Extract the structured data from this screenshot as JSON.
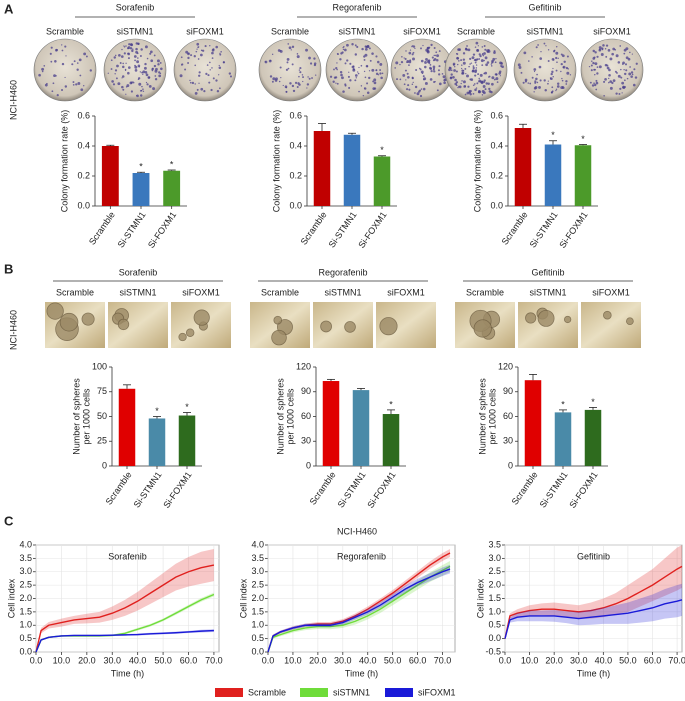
{
  "panel_labels": [
    "A",
    "B",
    "C"
  ],
  "cell_line": "NCI-H460",
  "plate_labels": [
    "Scramble",
    "siSTMN1",
    "siFOXM1"
  ],
  "chart_data": [
    {
      "type": "bar",
      "title": "Sorafenib",
      "ylabel": [
        "Colony formation rate (%)"
      ],
      "categories": [
        "Scramble",
        "Si-STMN1",
        "Si-FOXM1"
      ],
      "values": [
        0.4,
        0.22,
        0.235
      ],
      "errors": [
        0.005,
        0.005,
        0.005
      ],
      "colors": [
        "#c00000",
        "#3a78bd",
        "#4c9a2a"
      ],
      "ylim": [
        0,
        0.6
      ],
      "yticks": [
        {
          "value": 0,
          "label": "0.0"
        },
        0.2,
        0.4,
        0.6
      ],
      "annotations": [
        {
          "index": 1,
          "text": "*"
        },
        {
          "index": 2,
          "text": "*"
        }
      ]
    },
    {
      "type": "bar",
      "title": "Regorafenib",
      "ylabel": [
        "Colony formation rate (%)"
      ],
      "categories": [
        "Scramble",
        "Si-STMN1",
        "Si-FOXM1"
      ],
      "values": [
        0.5,
        0.475,
        0.33
      ],
      "errors": [
        0.05,
        0.01,
        0.005
      ],
      "colors": [
        "#c00000",
        "#3a78bd",
        "#4c9a2a"
      ],
      "ylim": [
        0,
        0.6
      ],
      "yticks": [
        {
          "value": 0,
          "label": "0.0"
        },
        0.2,
        0.4,
        0.6
      ],
      "annotations": [
        {
          "index": 2,
          "text": "*"
        }
      ]
    },
    {
      "type": "bar",
      "title": "Gefitinib",
      "ylabel": [
        "Colony formation rate (%)"
      ],
      "categories": [
        "Scramble",
        "Si-STMN1",
        "Si-FOXM1"
      ],
      "values": [
        0.52,
        0.41,
        0.405
      ],
      "errors": [
        0.025,
        0.025,
        0.005
      ],
      "colors": [
        "#c00000",
        "#3a78bd",
        "#4c9a2a"
      ],
      "ylim": [
        0,
        0.6
      ],
      "yticks": [
        {
          "value": 0,
          "label": "0.0"
        },
        0.2,
        0.4,
        0.6
      ],
      "annotations": [
        {
          "index": 1,
          "text": "*"
        },
        {
          "index": 2,
          "text": "*"
        }
      ]
    },
    {
      "type": "bar",
      "title": "Sorafenib",
      "ylabel": [
        "Number of spheres",
        "per 1000 cells"
      ],
      "categories": [
        "Scramble",
        "Si-STMN1",
        "Si-FOXM1"
      ],
      "values": [
        78,
        48,
        51
      ],
      "errors": [
        4,
        2,
        3
      ],
      "colors": [
        "#e00000",
        "#4a8aa8",
        "#2e6b1e"
      ],
      "ylim": [
        0,
        100
      ],
      "yticks": [
        0,
        25,
        50,
        75,
        100
      ],
      "annotations": [
        {
          "index": 1,
          "text": "*"
        },
        {
          "index": 2,
          "text": "*"
        }
      ]
    },
    {
      "type": "bar",
      "title": "Regorafenib",
      "ylabel": [
        "Number of spheres",
        "per 1000 cells"
      ],
      "categories": [
        "Scramble",
        "Si-STMN1",
        "Si-FOXM1"
      ],
      "values": [
        103,
        92,
        63
      ],
      "errors": [
        2,
        2,
        5
      ],
      "colors": [
        "#e00000",
        "#4a8aa8",
        "#2e6b1e"
      ],
      "ylim": [
        0,
        120
      ],
      "yticks": [
        0,
        30,
        60,
        90,
        120
      ],
      "annotations": [
        {
          "index": 2,
          "text": "*"
        }
      ]
    },
    {
      "type": "bar",
      "title": "Gefitinib",
      "ylabel": [
        "Number of spheres",
        "per 1000 cells"
      ],
      "categories": [
        "Scramble",
        "Si-STMN1",
        "Si-FOXM1"
      ],
      "values": [
        104,
        65,
        68
      ],
      "errors": [
        7,
        3,
        3
      ],
      "colors": [
        "#e00000",
        "#4a8aa8",
        "#2e6b1e"
      ],
      "ylim": [
        0,
        120
      ],
      "yticks": [
        0,
        30,
        60,
        90,
        120
      ],
      "annotations": [
        {
          "index": 1,
          "text": "*"
        },
        {
          "index": 2,
          "text": "*"
        }
      ]
    },
    {
      "type": "line",
      "title": "Sorafenib",
      "xlabel": "Time (h)",
      "ylabel": "Cell index",
      "x": [
        0,
        2,
        5,
        10,
        15,
        20,
        25,
        30,
        35,
        40,
        45,
        50,
        55,
        60,
        65,
        70
      ],
      "series": [
        {
          "name": "Scramble",
          "color": "#e0201e",
          "values": [
            0,
            0.8,
            1.0,
            1.1,
            1.2,
            1.25,
            1.3,
            1.45,
            1.65,
            1.9,
            2.2,
            2.5,
            2.8,
            3.0,
            3.15,
            3.25
          ],
          "errors": [
            0,
            0.1,
            0.12,
            0.15,
            0.15,
            0.18,
            0.2,
            0.25,
            0.3,
            0.35,
            0.4,
            0.45,
            0.5,
            0.55,
            0.6,
            0.6
          ]
        },
        {
          "name": "siSTMN1",
          "color": "#6fdc3a",
          "values": [
            0,
            0.45,
            0.55,
            0.6,
            0.6,
            0.6,
            0.6,
            0.62,
            0.7,
            0.85,
            1.0,
            1.2,
            1.45,
            1.7,
            1.95,
            2.15
          ],
          "errors": [
            0,
            0.03,
            0.03,
            0.03,
            0.03,
            0.03,
            0.03,
            0.04,
            0.04,
            0.05,
            0.05,
            0.05,
            0.06,
            0.06,
            0.07,
            0.07
          ]
        },
        {
          "name": "siFOXM1",
          "color": "#1a1ad8",
          "values": [
            0,
            0.45,
            0.55,
            0.6,
            0.62,
            0.62,
            0.62,
            0.63,
            0.64,
            0.65,
            0.68,
            0.7,
            0.72,
            0.75,
            0.78,
            0.8
          ],
          "errors": [
            0,
            0.03,
            0.03,
            0.03,
            0.03,
            0.03,
            0.03,
            0.03,
            0.03,
            0.04,
            0.04,
            0.04,
            0.04,
            0.04,
            0.05,
            0.05
          ]
        }
      ],
      "xlim": [
        0,
        72
      ],
      "ylim": [
        0,
        4.0
      ],
      "xticks": [
        {
          "value": 0,
          "label": "0.0"
        },
        {
          "value": 10,
          "label": "10.0"
        },
        {
          "value": 20,
          "label": "20.0"
        },
        {
          "value": 30,
          "label": "30.0"
        },
        {
          "value": 40,
          "label": "40.0"
        },
        {
          "value": 50,
          "label": "50.0"
        },
        {
          "value": 60,
          "label": "60.0"
        },
        {
          "value": 70,
          "label": "70.0"
        }
      ],
      "yticks": [
        {
          "value": 0,
          "label": "0.0"
        },
        0.5,
        {
          "value": 1,
          "label": "1.0"
        },
        1.5,
        {
          "value": 2,
          "label": "2.0"
        },
        2.5,
        {
          "value": 3,
          "label": "3.0"
        },
        3.5,
        {
          "value": 4,
          "label": "4.0"
        }
      ]
    },
    {
      "type": "line",
      "title": "Regorafenib",
      "xlabel": "Time (h)",
      "ylabel": "Cell index",
      "x": [
        0,
        2,
        5,
        10,
        15,
        20,
        25,
        30,
        35,
        40,
        45,
        50,
        55,
        60,
        65,
        70,
        73
      ],
      "series": [
        {
          "name": "Scramble",
          "color": "#e0201e",
          "values": [
            0,
            0.6,
            0.75,
            0.9,
            1.0,
            1.05,
            1.05,
            1.15,
            1.35,
            1.6,
            1.9,
            2.2,
            2.55,
            2.9,
            3.25,
            3.55,
            3.7
          ],
          "errors": [
            0,
            0.05,
            0.05,
            0.06,
            0.06,
            0.07,
            0.07,
            0.08,
            0.09,
            0.1,
            0.1,
            0.12,
            0.12,
            0.13,
            0.14,
            0.15,
            0.15
          ]
        },
        {
          "name": "siSTMN1",
          "color": "#6fdc3a",
          "values": [
            0,
            0.55,
            0.65,
            0.8,
            0.9,
            0.95,
            0.95,
            1.0,
            1.15,
            1.35,
            1.6,
            1.9,
            2.2,
            2.5,
            2.8,
            3.05,
            3.2
          ],
          "errors": [
            0,
            0.05,
            0.06,
            0.07,
            0.08,
            0.09,
            0.1,
            0.1,
            0.12,
            0.13,
            0.14,
            0.15,
            0.16,
            0.17,
            0.18,
            0.2,
            0.2
          ]
        },
        {
          "name": "siFOXM1",
          "color": "#1a1ad8",
          "values": [
            0,
            0.6,
            0.75,
            0.9,
            1.0,
            1.0,
            1.0,
            1.1,
            1.3,
            1.5,
            1.75,
            2.05,
            2.35,
            2.6,
            2.8,
            3.0,
            3.1
          ],
          "errors": [
            0,
            0.05,
            0.05,
            0.06,
            0.06,
            0.07,
            0.07,
            0.08,
            0.09,
            0.1,
            0.11,
            0.12,
            0.13,
            0.14,
            0.15,
            0.16,
            0.16
          ]
        }
      ],
      "xlim": [
        0,
        75
      ],
      "ylim": [
        0,
        4.0
      ],
      "xticks": [
        {
          "value": 0,
          "label": "0.0"
        },
        {
          "value": 10,
          "label": "10.0"
        },
        {
          "value": 20,
          "label": "20.0"
        },
        {
          "value": 30,
          "label": "30.0"
        },
        {
          "value": 40,
          "label": "40.0"
        },
        {
          "value": 50,
          "label": "50.0"
        },
        {
          "value": 60,
          "label": "60.0"
        },
        {
          "value": 70,
          "label": "70.0"
        }
      ],
      "yticks": [
        {
          "value": 0,
          "label": "0.0"
        },
        0.5,
        {
          "value": 1,
          "label": "1.0"
        },
        1.5,
        {
          "value": 2,
          "label": "2.0"
        },
        2.5,
        {
          "value": 3,
          "label": "3.0"
        },
        3.5,
        {
          "value": 4,
          "label": "4.0"
        }
      ]
    },
    {
      "type": "line",
      "title": "Gefitinib",
      "xlabel": "Time (h)",
      "ylabel": "Cell index",
      "x": [
        0,
        2,
        5,
        10,
        15,
        20,
        25,
        30,
        35,
        40,
        45,
        50,
        55,
        60,
        65,
        70,
        72
      ],
      "series": [
        {
          "name": "Scramble",
          "color": "#e0201e",
          "values": [
            0,
            0.85,
            0.95,
            1.05,
            1.1,
            1.1,
            1.05,
            1.0,
            1.05,
            1.15,
            1.3,
            1.5,
            1.75,
            2.0,
            2.3,
            2.6,
            2.7
          ],
          "errors": [
            0,
            0.1,
            0.15,
            0.2,
            0.22,
            0.25,
            0.25,
            0.25,
            0.3,
            0.35,
            0.4,
            0.5,
            0.55,
            0.6,
            0.7,
            0.8,
            0.8
          ]
        },
        {
          "name": "siFOXM1",
          "color": "#1a1ad8",
          "values": [
            0,
            0.7,
            0.8,
            0.85,
            0.85,
            0.85,
            0.8,
            0.75,
            0.8,
            0.85,
            0.9,
            0.95,
            1.05,
            1.15,
            1.3,
            1.4,
            1.45
          ],
          "errors": [
            0,
            0.1,
            0.15,
            0.2,
            0.2,
            0.22,
            0.22,
            0.25,
            0.28,
            0.3,
            0.35,
            0.4,
            0.45,
            0.5,
            0.55,
            0.6,
            0.6
          ]
        }
      ],
      "xlim": [
        0,
        72
      ],
      "ylim": [
        -0.5,
        3.5
      ],
      "xticks": [
        {
          "value": 0,
          "label": "0.0"
        },
        {
          "value": 10,
          "label": "10.0"
        },
        {
          "value": 20,
          "label": "20.0"
        },
        {
          "value": 30,
          "label": "30.0"
        },
        {
          "value": 40,
          "label": "40.0"
        },
        {
          "value": 50,
          "label": "50.0"
        },
        {
          "value": 60,
          "label": "60.0"
        },
        {
          "value": 70,
          "label": "70.0"
        }
      ],
      "yticks": [
        -0.5,
        {
          "value": 0,
          "label": "0.0"
        },
        0.5,
        {
          "value": 1,
          "label": "1.0"
        },
        1.5,
        {
          "value": 2,
          "label": "2.0"
        },
        2.5,
        {
          "value": 3,
          "label": "3.0"
        },
        3.5
      ]
    }
  ]
}
